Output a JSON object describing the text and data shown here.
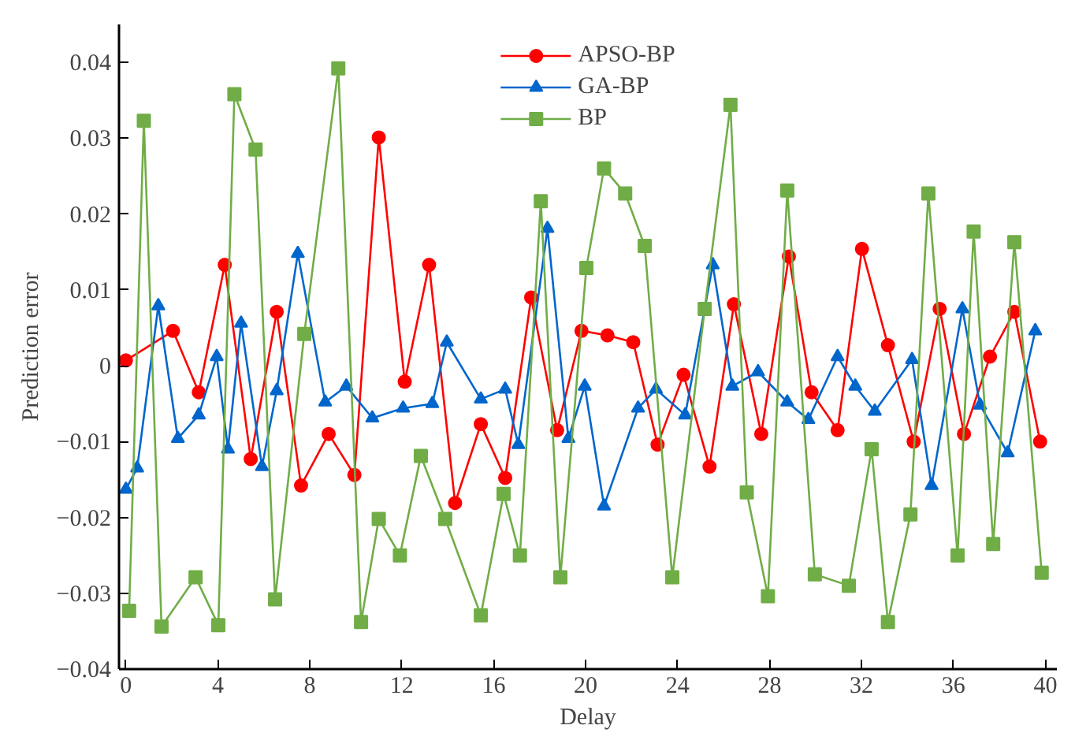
{
  "chart_data": {
    "type": "line",
    "xlabel": "Delay",
    "ylabel": "Prediction error",
    "xlim": [
      -0.3,
      40.5
    ],
    "ylim": [
      -0.04,
      0.045
    ],
    "xticks": [
      0,
      4,
      8,
      12,
      16,
      20,
      24,
      28,
      32,
      36,
      40
    ],
    "yticks": [
      -0.04,
      -0.03,
      -0.02,
      -0.01,
      {
        "value": 0,
        "label": "0"
      },
      0.01,
      0.02,
      0.03,
      0.04
    ],
    "grid": false,
    "legend": "top",
    "series": [
      {
        "name": "APSO-BP",
        "color": "#ff0000",
        "marker": "circle",
        "x": [
          0,
          2.05,
          3.17,
          4.3,
          5.43,
          6.56,
          7.62,
          8.82,
          9.94,
          11.0,
          12.13,
          13.19,
          14.32,
          15.44,
          16.5,
          17.63,
          18.76,
          19.82,
          20.95,
          22.07,
          23.13,
          24.26,
          25.39,
          26.45,
          27.64,
          28.84,
          29.83,
          30.96,
          32.02,
          33.15,
          34.27,
          35.4,
          36.46,
          37.59,
          38.65,
          39.77
        ],
        "values": [
          0.0007,
          0.0046,
          -0.0035,
          0.0133,
          -0.0123,
          0.0071,
          -0.0158,
          -0.009,
          -0.0144,
          0.0301,
          -0.0021,
          0.0133,
          -0.0181,
          -0.0077,
          -0.0148,
          0.009,
          -0.0085,
          0.0046,
          0.004,
          0.0031,
          -0.0104,
          -0.0012,
          -0.0133,
          0.0081,
          -0.009,
          0.0144,
          -0.0035,
          -0.0085,
          0.0154,
          0.0027,
          -0.01,
          0.0075,
          -0.009,
          0.0012,
          0.0071,
          -0.01
        ]
      },
      {
        "name": "GA-BP",
        "color": "#0066cc",
        "marker": "triangle",
        "x": [
          0,
          0.49,
          1.41,
          2.26,
          3.17,
          3.95,
          4.44,
          5.01,
          5.92,
          6.56,
          7.48,
          8.67,
          9.59,
          10.72,
          12.06,
          13.33,
          13.96,
          15.44,
          16.5,
          17.07,
          18.34,
          19.25,
          19.96,
          20.8,
          22.28,
          23.06,
          24.33,
          25.53,
          26.38,
          27.5,
          28.77,
          29.69,
          30.96,
          31.73,
          32.58,
          34.2,
          35.05,
          36.39,
          37.16,
          38.36,
          39.56
        ],
        "values": [
          -0.0163,
          -0.0135,
          0.0079,
          -0.0096,
          -0.0065,
          0.0012,
          -0.011,
          0.0056,
          -0.0133,
          -0.0033,
          0.0148,
          -0.0048,
          -0.0027,
          -0.0069,
          -0.0056,
          -0.005,
          0.0031,
          -0.0044,
          -0.0031,
          -0.0104,
          0.0181,
          -0.0096,
          -0.0027,
          -0.0185,
          -0.0056,
          -0.0031,
          -0.0065,
          0.0133,
          -0.0027,
          -0.0008,
          -0.0048,
          -0.0071,
          0.0012,
          -0.0027,
          -0.006,
          0.0008,
          -0.0158,
          0.0075,
          -0.0052,
          -0.0115,
          0.0046
        ]
      },
      {
        "name": "BP",
        "color": "#70ad47",
        "marker": "square",
        "x": [
          0.14,
          0.78,
          1.55,
          3.03,
          4.02,
          4.72,
          5.64,
          6.49,
          7.76,
          9.24,
          10.23,
          11.0,
          11.92,
          12.83,
          13.89,
          15.44,
          16.43,
          17.14,
          18.05,
          18.9,
          20.03,
          20.8,
          21.72,
          22.57,
          23.77,
          25.18,
          26.3,
          27.01,
          27.93,
          28.77,
          29.97,
          31.45,
          32.44,
          33.15,
          34.13,
          34.91,
          36.18,
          36.88,
          37.73,
          38.65,
          39.84
        ],
        "values": [
          -0.0323,
          0.0323,
          -0.0344,
          -0.0279,
          -0.0342,
          0.0358,
          0.0285,
          -0.0308,
          0.0042,
          0.0392,
          -0.0338,
          -0.0202,
          -0.025,
          -0.0119,
          -0.0202,
          -0.0329,
          -0.0169,
          -0.025,
          0.0217,
          -0.0279,
          0.0129,
          0.026,
          0.0227,
          0.0158,
          -0.0279,
          0.0075,
          0.0344,
          -0.0167,
          -0.0304,
          0.0231,
          -0.0275,
          -0.029,
          -0.011,
          -0.0338,
          -0.0196,
          0.0227,
          -0.025,
          0.0177,
          -0.0235,
          0.0163,
          -0.0273
        ]
      }
    ]
  }
}
